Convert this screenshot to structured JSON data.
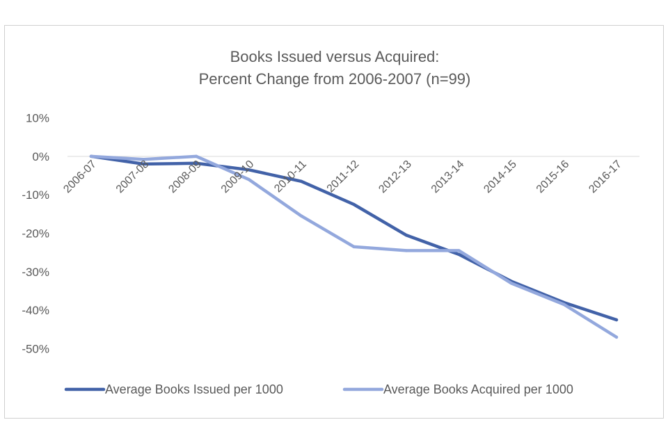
{
  "chart_data": {
    "type": "line",
    "title": "Books Issued versus Acquired:",
    "subtitle": "Percent Change from 2006-2007 (n=99)",
    "xlabel": "",
    "ylabel": "",
    "categories": [
      "2006-07",
      "2007-08",
      "2008-09",
      "2009-10",
      "2010-11",
      "2011-12",
      "2012-13",
      "2013-14",
      "2014-15",
      "2015-16",
      "2016-17"
    ],
    "ylim": [
      -50,
      10
    ],
    "yticks": [
      10,
      0,
      -10,
      -20,
      -30,
      -40,
      -50
    ],
    "ytick_labels": [
      "10%",
      "0%",
      "-10%",
      "-20%",
      "-30%",
      "-40%",
      "-50%"
    ],
    "grid": false,
    "zero_line": true,
    "legend_position": "bottom",
    "series": [
      {
        "name": "Average Books Issued per 1000",
        "color": "#4262a8",
        "values": [
          0,
          -2,
          -1.8,
          -3.5,
          -6.5,
          -12.5,
          -20.5,
          -25.5,
          -32.5,
          -38,
          -42.5
        ]
      },
      {
        "name": "Average Books Acquired per 1000",
        "color": "#93a8dd",
        "values": [
          0,
          -0.8,
          0,
          -6,
          -15.5,
          -23.5,
          -24.5,
          -24.5,
          -33,
          -38.5,
          -47
        ]
      }
    ]
  }
}
